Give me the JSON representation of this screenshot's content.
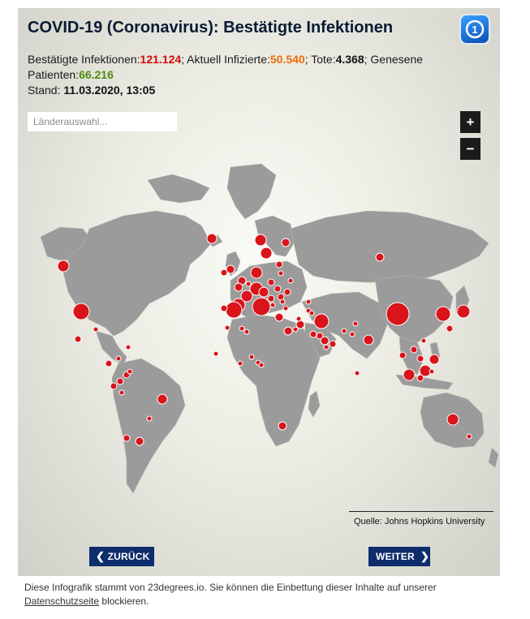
{
  "title": "COVID-19 (Coronavirus): Bestätigte Infektionen",
  "logo": "tagesschau-logo-icon",
  "stats": {
    "confirmed_label": "Bestätigte Infektionen:",
    "confirmed_value": "121.124",
    "active_label": "; Aktuell Infizierte:",
    "active_value": "50.540",
    "deaths_label": "; Tote:",
    "deaths_value": "4.368",
    "recovered_label": "; Genesene Patienten:",
    "recovered_value": "66.216",
    "date_label": "Stand:",
    "date_value": "11.03.2020, 13:05"
  },
  "search": {
    "placeholder": "Länderauswahl..."
  },
  "zoom": {
    "in_label": "+",
    "out_label": "−"
  },
  "source": "Quelle: Johns Hopkins University",
  "nav": {
    "prev_label": "ZURÜCK",
    "next_label": "WEITER"
  },
  "footer": {
    "text_before": "Diese Infografik stammt von 23degrees.io. Sie können die Einbettung dieser Inhalte auf unserer",
    "link_text": "Datenschutzseite",
    "text_after": "blockieren."
  },
  "colors": {
    "land": "#9b9b9b",
    "bubble": "#d9141a",
    "button": "#0d2d6c",
    "confirmed": "#d40a0a",
    "active": "#ef6b0a",
    "recovered": "#4f8a10"
  }
}
